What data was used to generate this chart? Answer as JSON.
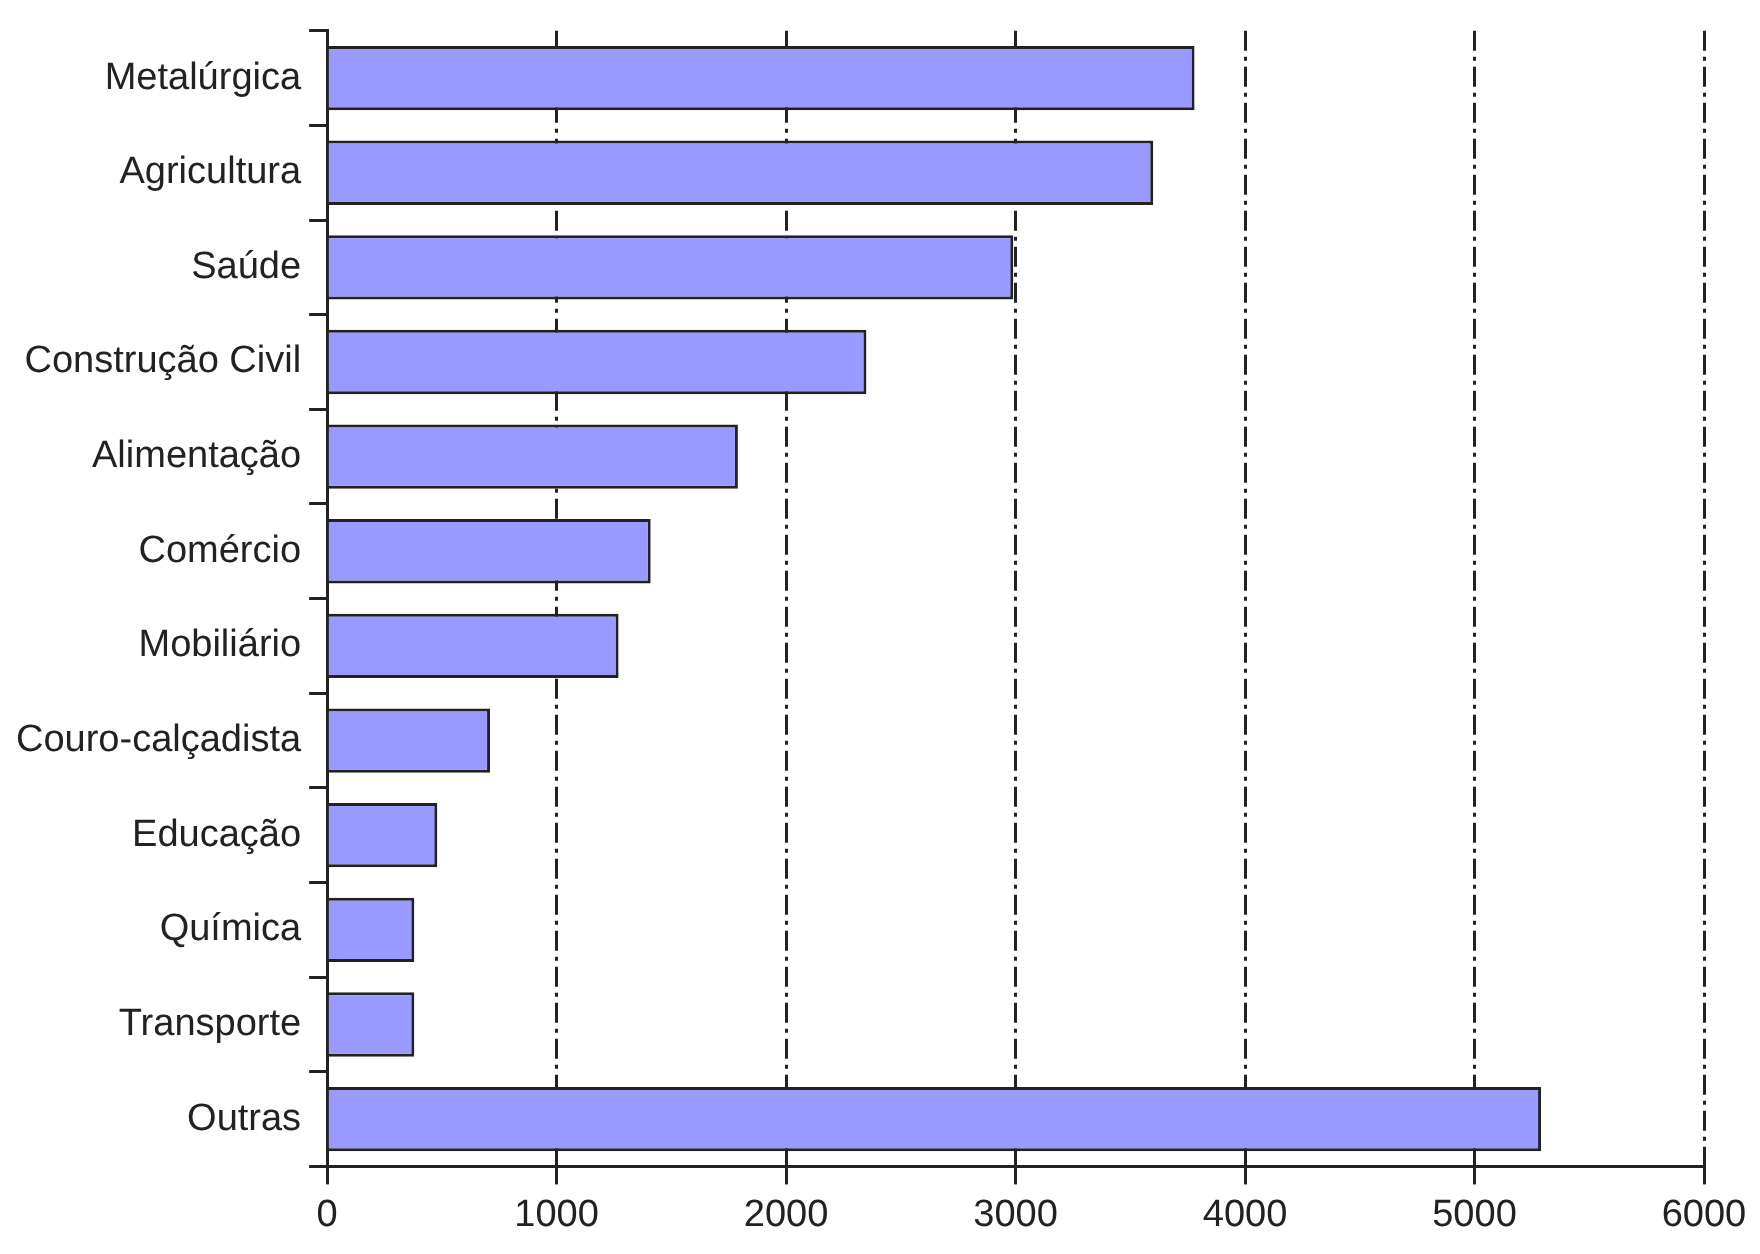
{
  "chart_data": {
    "type": "bar",
    "orientation": "horizontal",
    "categories": [
      "Metalúrgica",
      "Agricultura",
      "Saúde",
      "Construção Civil",
      "Alimentação",
      "Comércio",
      "Mobiliário",
      "Couro-calçadista",
      "Educação",
      "Química",
      "Transporte",
      "Outras"
    ],
    "values": [
      3780,
      3600,
      2990,
      2350,
      1790,
      1410,
      1270,
      710,
      480,
      380,
      380,
      5290
    ],
    "color": "#9999ff",
    "xlim": [
      0,
      6000
    ],
    "xticks": [
      0,
      1000,
      2000,
      3000,
      4000,
      5000,
      6000
    ],
    "grid": "x",
    "legend": false
  }
}
